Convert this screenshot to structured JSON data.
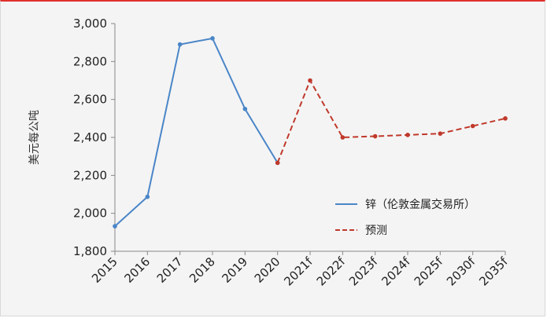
{
  "chart_data": {
    "type": "line",
    "ylabel": "美元每公吨",
    "ylim": [
      1800,
      3000
    ],
    "yticks": [
      1800,
      2000,
      2200,
      2400,
      2600,
      2800,
      3000
    ],
    "ytick_labels": [
      "1,800",
      "2,000",
      "2,200",
      "2,400",
      "2,600",
      "2,800",
      "3,000"
    ],
    "categories": [
      "2015",
      "2016",
      "2017",
      "2018",
      "2019",
      "2020",
      "2021f",
      "2022f",
      "2023f",
      "2024f",
      "2025f",
      "2030f",
      "2035f"
    ],
    "series": [
      {
        "name": "锌（伦敦金属交易所）",
        "color": "#4a86c8",
        "style": "solid",
        "values": [
          1932,
          2087,
          2890,
          2922,
          2550,
          2266,
          null,
          null,
          null,
          null,
          null,
          null,
          null
        ]
      },
      {
        "name": "预测",
        "color": "#c0392b",
        "style": "dashed",
        "values": [
          null,
          null,
          null,
          null,
          null,
          2266,
          2700,
          2400,
          2406,
          2413,
          2420,
          2460,
          2500
        ]
      }
    ],
    "legend_position": "right",
    "grid": false
  }
}
